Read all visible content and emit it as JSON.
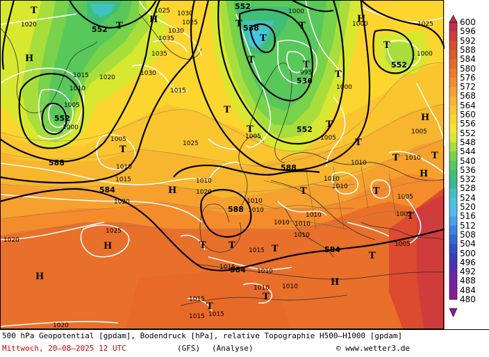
{
  "title_line": "500 hPa Geopotential [gpdam], Bodendruck [hPa], relative Topographie H500–H1000 [gpdam]",
  "date_line": "Mittwoch, 20–08–2025  12 UTC",
  "model": "(GFS)",
  "analysis": "(Analyse)",
  "copyright": "© www.wetter3.de",
  "legend": {
    "values": [
      "600",
      "596",
      "592",
      "588",
      "584",
      "580",
      "576",
      "572",
      "568",
      "564",
      "560",
      "556",
      "552",
      "548",
      "544",
      "540",
      "536",
      "532",
      "528",
      "524",
      "520",
      "516",
      "512",
      "508",
      "504",
      "500",
      "496",
      "492",
      "488",
      "484",
      "480"
    ],
    "colors": [
      "#c0304a",
      "#d03c3c",
      "#dc4a30",
      "#e05a2a",
      "#e86a28",
      "#ef7a2a",
      "#f58c2c",
      "#f6a12e",
      "#f8b62e",
      "#fac52e",
      "#fcd52e",
      "#f6e22c",
      "#d8e830",
      "#a8de3c",
      "#78d24a",
      "#58c85a",
      "#40be78",
      "#38b896",
      "#40c2c0",
      "#48c6e0",
      "#50bcf0",
      "#4aa0f0",
      "#3a82e8",
      "#3468d8",
      "#3050c8",
      "#3c3cb8",
      "#5030b0",
      "#6828a8",
      "#7c20a0",
      "#8a1c98",
      "#9418a0"
    ]
  },
  "geopotential_labels": [
    "552",
    "552",
    "552",
    "552",
    "552",
    "538",
    "536",
    "588",
    "588",
    "588",
    "584",
    "584",
    "584"
  ],
  "pressure_labels": [
    "1020",
    "1025",
    "1035",
    "1030",
    "1030",
    "1035",
    "1025",
    "1000",
    "1015",
    "1010",
    "1005",
    "1000",
    "1020",
    "1025",
    "1030",
    "1015",
    "1010",
    "1005",
    "1010",
    "1015",
    "1020",
    "1025",
    "1010",
    "1005",
    "1015",
    "1020",
    "1010",
    "1005",
    "1010",
    "1010",
    "1015",
    "1010",
    "1005",
    "1015",
    "1010",
    "1020",
    "1010",
    "1000",
    "1010",
    "995",
    "1000",
    "1005",
    "1005",
    "1010",
    "1010",
    "1005",
    "1000",
    "1025",
    "1010",
    "1015",
    "1010",
    "1015",
    "1010",
    "1020"
  ],
  "highs": [
    "H",
    "H",
    "H",
    "H",
    "H",
    "H",
    "H",
    "H",
    "H"
  ],
  "lows": [
    "T",
    "T",
    "T",
    "T",
    "T",
    "T",
    "T",
    "T",
    "T",
    "T",
    "T",
    "T",
    "T",
    "T",
    "T",
    "T",
    "T",
    "T",
    "T",
    "T",
    "T",
    "T",
    "T",
    "T",
    "T"
  ]
}
